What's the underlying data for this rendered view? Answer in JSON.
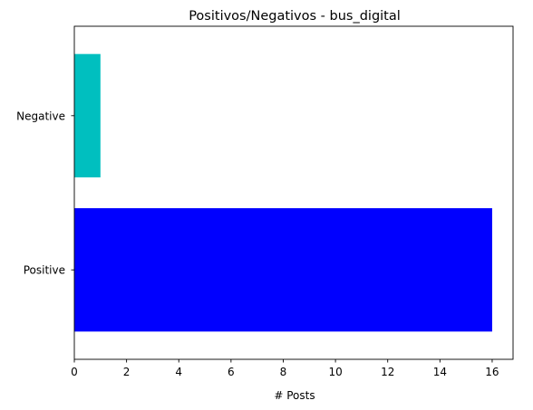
{
  "chart_data": {
    "type": "bar",
    "orientation": "horizontal",
    "title": "Positivos/Negativos - bus_digital",
    "xlabel": "# Posts",
    "ylabel": "",
    "categories": [
      "Positive",
      "Negative"
    ],
    "values": [
      16,
      1
    ],
    "colors": [
      "#0000ff",
      "#00bfbf"
    ],
    "xlim": [
      0,
      16.8
    ],
    "xticks": [
      0,
      2,
      4,
      6,
      8,
      10,
      12,
      14,
      16
    ],
    "grid": false,
    "legend": "none"
  }
}
